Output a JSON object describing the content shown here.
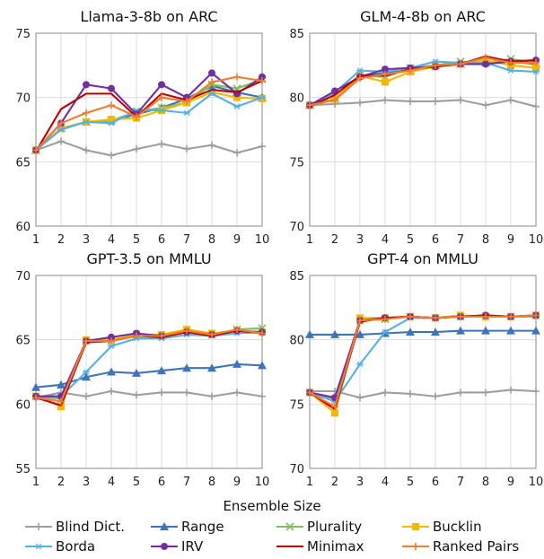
{
  "chart_data": {
    "type": "line",
    "xlabel": "Ensemble Size",
    "series_styles": [
      {
        "name": "Blind Dict.",
        "color": "#9e9e9e",
        "marker": "plus"
      },
      {
        "name": "Range",
        "color": "#3f74b8",
        "marker": "triangle"
      },
      {
        "name": "Plurality",
        "color": "#7dbf5c",
        "marker": "x"
      },
      {
        "name": "Bucklin",
        "color": "#f5b800",
        "marker": "square"
      },
      {
        "name": "Borda",
        "color": "#55b0e4",
        "marker": "star"
      },
      {
        "name": "IRV",
        "color": "#7030a0",
        "marker": "circle"
      },
      {
        "name": "Minimax",
        "color": "#c00000",
        "marker": "none"
      },
      {
        "name": "Ranked Pairs",
        "color": "#ed7d31",
        "marker": "plus"
      }
    ],
    "legend": [
      "Blind Dict.",
      "Range",
      "Plurality",
      "Bucklin",
      "Borda",
      "IRV",
      "Minimax",
      "Ranked Pairs"
    ],
    "panels": [
      {
        "title": "Llama-3-8b on ARC",
        "x": [
          1,
          2,
          3,
          4,
          5,
          6,
          7,
          8,
          9,
          10
        ],
        "ylim": [
          60,
          75
        ],
        "yticks": [
          60,
          65,
          70,
          75
        ],
        "series": [
          {
            "name": "Blind Dict.",
            "values": [
              65.9,
              66.6,
              65.9,
              65.5,
              66.0,
              66.4,
              66.0,
              66.3,
              65.7,
              66.2
            ]
          },
          {
            "name": "Range",
            "values": [
              65.9,
              67.6,
              68.1,
              68.2,
              68.7,
              69.2,
              69.9,
              70.9,
              70.4,
              70.0
            ]
          },
          {
            "name": "Plurality",
            "values": [
              65.9,
              67.6,
              68.1,
              68.2,
              68.9,
              69.2,
              69.6,
              71.0,
              70.7,
              71.4
            ]
          },
          {
            "name": "Bucklin",
            "values": [
              65.9,
              67.6,
              68.1,
              68.3,
              68.4,
              69.0,
              69.6,
              70.4,
              70.0,
              69.9
            ]
          },
          {
            "name": "Borda",
            "values": [
              65.9,
              67.5,
              68.1,
              68.0,
              69.0,
              69.0,
              68.8,
              70.3,
              69.3,
              70.0
            ]
          },
          {
            "name": "IRV",
            "values": [
              65.9,
              68.0,
              71.0,
              70.7,
              68.7,
              71.0,
              70.0,
              71.9,
              70.3,
              71.6
            ]
          },
          {
            "name": "Minimax",
            "values": [
              65.8,
              69.1,
              70.3,
              70.3,
              68.5,
              70.3,
              69.8,
              70.6,
              70.4,
              71.3
            ]
          },
          {
            "name": "Ranked Pairs",
            "values": [
              65.9,
              68.0,
              68.8,
              69.4,
              68.5,
              70.0,
              69.7,
              71.2,
              71.6,
              71.3
            ]
          }
        ]
      },
      {
        "title": "GLM-4-8b on ARC",
        "x": [
          1,
          2,
          3,
          4,
          5,
          6,
          7,
          8,
          9,
          10
        ],
        "ylim": [
          70,
          85
        ],
        "yticks": [
          70,
          75,
          80,
          85
        ],
        "series": [
          {
            "name": "Blind Dict.",
            "values": [
              79.4,
              79.5,
              79.6,
              79.8,
              79.7,
              79.7,
              79.8,
              79.4,
              79.8,
              79.3
            ]
          },
          {
            "name": "Range",
            "values": [
              79.4,
              79.9,
              81.7,
              81.9,
              82.1,
              82.5,
              82.6,
              82.7,
              82.8,
              82.6
            ]
          },
          {
            "name": "Plurality",
            "values": [
              79.4,
              79.9,
              81.7,
              81.6,
              82.3,
              82.5,
              82.8,
              82.7,
              83.0,
              82.7
            ]
          },
          {
            "name": "Bucklin",
            "values": [
              79.4,
              79.9,
              81.7,
              81.2,
              82.0,
              82.4,
              82.6,
              82.9,
              82.5,
              82.3
            ]
          },
          {
            "name": "Borda",
            "values": [
              79.4,
              80.4,
              82.1,
              82.0,
              82.3,
              82.8,
              82.7,
              82.7,
              82.1,
              82.0
            ]
          },
          {
            "name": "IRV",
            "values": [
              79.4,
              80.5,
              81.6,
              82.2,
              82.3,
              82.4,
              82.6,
              82.6,
              82.8,
              82.9
            ]
          },
          {
            "name": "Minimax",
            "values": [
              79.3,
              80.2,
              81.7,
              81.7,
              82.2,
              82.4,
              82.6,
              83.2,
              82.8,
              82.9
            ]
          },
          {
            "name": "Ranked Pairs",
            "values": [
              79.4,
              79.8,
              81.5,
              81.8,
              82.1,
              82.5,
              82.6,
              83.1,
              82.7,
              82.7
            ]
          }
        ]
      },
      {
        "title": "GPT-3.5 on MMLU",
        "x": [
          1,
          2,
          3,
          4,
          5,
          6,
          7,
          8,
          9,
          10
        ],
        "ylim": [
          55,
          70
        ],
        "yticks": [
          55,
          60,
          65,
          70
        ],
        "series": [
          {
            "name": "Blind Dict.",
            "values": [
              60.5,
              60.9,
              60.6,
              61.0,
              60.7,
              60.9,
              60.9,
              60.6,
              60.9,
              60.6
            ]
          },
          {
            "name": "Range",
            "values": [
              61.3,
              61.5,
              62.1,
              62.5,
              62.4,
              62.6,
              62.8,
              62.8,
              63.1,
              63.0
            ]
          },
          {
            "name": "Plurality",
            "values": [
              60.6,
              60.4,
              64.9,
              64.9,
              65.3,
              65.3,
              65.6,
              65.4,
              65.8,
              65.9
            ]
          },
          {
            "name": "Bucklin",
            "values": [
              60.6,
              59.8,
              65.0,
              65.0,
              65.4,
              65.4,
              65.8,
              65.5,
              65.7,
              65.6
            ]
          },
          {
            "name": "Borda",
            "values": [
              60.6,
              60.6,
              62.5,
              64.5,
              65.1,
              65.1,
              65.4,
              65.3,
              65.5,
              65.6
            ]
          },
          {
            "name": "IRV",
            "values": [
              60.6,
              60.6,
              64.9,
              65.2,
              65.5,
              65.3,
              65.6,
              65.4,
              65.7,
              65.6
            ]
          },
          {
            "name": "Minimax",
            "values": [
              60.5,
              59.9,
              64.8,
              64.9,
              65.3,
              65.2,
              65.6,
              65.3,
              65.7,
              65.5
            ]
          },
          {
            "name": "Ranked Pairs",
            "values": [
              60.5,
              60.2,
              64.9,
              64.9,
              65.3,
              65.3,
              65.7,
              65.4,
              65.8,
              65.5
            ]
          }
        ]
      },
      {
        "title": "GPT-4 on MMLU",
        "x": [
          1,
          2,
          3,
          4,
          5,
          6,
          7,
          8,
          9,
          10
        ],
        "ylim": [
          70,
          85
        ],
        "yticks": [
          70,
          75,
          80,
          85
        ],
        "series": [
          {
            "name": "Blind Dict.",
            "values": [
              76.0,
              76.0,
              75.5,
              75.9,
              75.8,
              75.6,
              75.9,
              75.9,
              76.1,
              76.0
            ]
          },
          {
            "name": "Range",
            "values": [
              80.4,
              80.4,
              80.4,
              80.5,
              80.6,
              80.6,
              80.7,
              80.7,
              80.7,
              80.7
            ]
          },
          {
            "name": "Plurality",
            "values": [
              75.9,
              75.4,
              81.5,
              81.6,
              81.8,
              81.7,
              81.8,
              81.8,
              81.8,
              81.9
            ]
          },
          {
            "name": "Bucklin",
            "values": [
              75.9,
              74.3,
              81.7,
              81.7,
              81.8,
              81.7,
              81.9,
              81.8,
              81.8,
              81.9
            ]
          },
          {
            "name": "Borda",
            "values": [
              75.9,
              75.2,
              78.1,
              80.6,
              81.7,
              81.7,
              81.8,
              81.8,
              81.8,
              81.8
            ]
          },
          {
            "name": "IRV",
            "values": [
              75.9,
              75.5,
              81.5,
              81.7,
              81.8,
              81.7,
              81.8,
              81.9,
              81.8,
              81.9
            ]
          },
          {
            "name": "Minimax",
            "values": [
              75.9,
              74.6,
              81.4,
              81.7,
              81.8,
              81.7,
              81.8,
              81.9,
              81.8,
              81.9
            ]
          },
          {
            "name": "Ranked Pairs",
            "values": [
              75.9,
              74.8,
              81.5,
              81.6,
              81.8,
              81.7,
              81.8,
              81.8,
              81.8,
              81.9
            ]
          }
        ]
      }
    ]
  }
}
